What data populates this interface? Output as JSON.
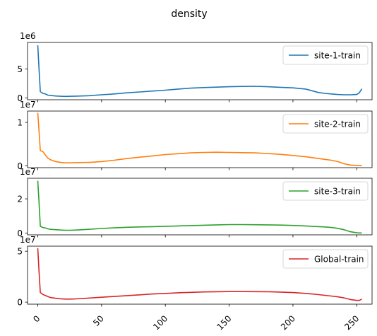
{
  "chart_data": {
    "type": "line",
    "title": "density",
    "xlim": [
      -8,
      262
    ],
    "x_ticks": [
      "0",
      "50",
      "100",
      "150",
      "200",
      "250"
    ],
    "x_tick_rotation": 45,
    "grid": false,
    "legend_placement": "upper right",
    "x": [
      0,
      1,
      2,
      4,
      6,
      8,
      10,
      14,
      18,
      22,
      26,
      30,
      40,
      50,
      60,
      70,
      80,
      90,
      100,
      110,
      120,
      130,
      140,
      150,
      160,
      170,
      180,
      190,
      200,
      210,
      215,
      220,
      225,
      230,
      235,
      240,
      245,
      250,
      252,
      254
    ],
    "panels": [
      {
        "series_name": "site-1-train",
        "color": "#1f77b4",
        "scale_exponent": "1e6",
        "ylim": [
          -0.3,
          9.6
        ],
        "y_ticks": [
          0,
          5
        ],
        "y_tick_labels": [
          "0",
          "5"
        ],
        "values": [
          9.1,
          5.0,
          1.1,
          0.8,
          0.7,
          0.5,
          0.45,
          0.35,
          0.3,
          0.28,
          0.3,
          0.32,
          0.4,
          0.55,
          0.7,
          0.9,
          1.05,
          1.2,
          1.35,
          1.55,
          1.7,
          1.8,
          1.88,
          1.95,
          2.0,
          2.02,
          1.95,
          1.85,
          1.75,
          1.55,
          1.25,
          0.95,
          0.8,
          0.7,
          0.6,
          0.55,
          0.55,
          0.6,
          0.9,
          1.6
        ]
      },
      {
        "series_name": "site-2-train",
        "color": "#ff7f0e",
        "scale_exponent": "1e7",
        "ylim": [
          -0.04,
          1.26
        ],
        "y_ticks": [
          0,
          1
        ],
        "y_tick_labels": [
          "0",
          "1"
        ],
        "values": [
          1.22,
          0.8,
          0.35,
          0.33,
          0.25,
          0.18,
          0.14,
          0.1,
          0.08,
          0.07,
          0.07,
          0.075,
          0.08,
          0.1,
          0.13,
          0.17,
          0.2,
          0.23,
          0.26,
          0.28,
          0.3,
          0.31,
          0.315,
          0.31,
          0.305,
          0.3,
          0.285,
          0.265,
          0.24,
          0.21,
          0.19,
          0.17,
          0.15,
          0.13,
          0.1,
          0.05,
          0.02,
          0.01,
          0.005,
          0.005
        ]
      },
      {
        "series_name": "site-3-train",
        "color": "#2ca02c",
        "scale_exponent": "1e7",
        "ylim": [
          -0.1,
          3.2
        ],
        "y_ticks": [
          0,
          2
        ],
        "y_tick_labels": [
          "0",
          "2"
        ],
        "values": [
          3.05,
          1.8,
          0.4,
          0.33,
          0.3,
          0.25,
          0.22,
          0.2,
          0.18,
          0.17,
          0.17,
          0.18,
          0.22,
          0.27,
          0.31,
          0.34,
          0.36,
          0.38,
          0.4,
          0.42,
          0.44,
          0.46,
          0.48,
          0.5,
          0.5,
          0.49,
          0.48,
          0.47,
          0.45,
          0.42,
          0.4,
          0.38,
          0.36,
          0.33,
          0.28,
          0.2,
          0.08,
          0.02,
          0.01,
          0.01
        ]
      },
      {
        "series_name": "Global-train",
        "color": "#d62728",
        "scale_exponent": "1e7",
        "ylim": [
          -0.2,
          5.5
        ],
        "y_ticks": [
          0,
          5
        ],
        "y_tick_labels": [
          "0",
          "5"
        ],
        "values": [
          5.3,
          3.0,
          0.95,
          0.75,
          0.65,
          0.55,
          0.45,
          0.38,
          0.33,
          0.3,
          0.3,
          0.32,
          0.4,
          0.48,
          0.56,
          0.64,
          0.72,
          0.8,
          0.86,
          0.92,
          0.96,
          1.0,
          1.02,
          1.04,
          1.04,
          1.03,
          1.02,
          0.99,
          0.94,
          0.86,
          0.8,
          0.74,
          0.67,
          0.6,
          0.52,
          0.42,
          0.26,
          0.17,
          0.17,
          0.3
        ]
      }
    ]
  }
}
